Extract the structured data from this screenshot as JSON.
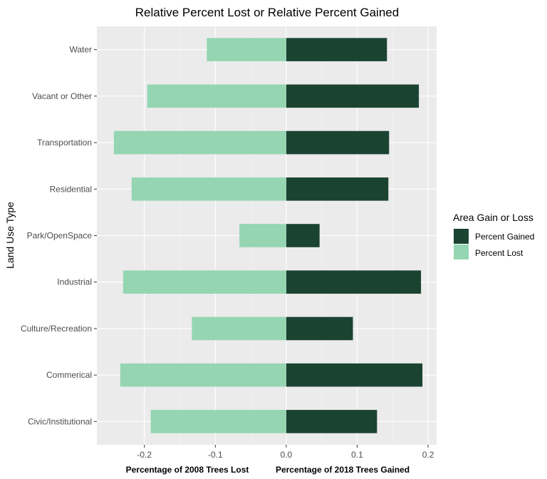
{
  "chart_data": {
    "type": "bar",
    "orientation": "horizontal",
    "title": "Relative Percent Lost or Relative Percent Gained",
    "ylabel": "Land Use Type",
    "bottom_labels": [
      "Percentage of 2008 Trees Lost",
      "Percentage of 2018 Trees Gained"
    ],
    "categories": [
      "Water",
      "Vacant or Other",
      "Transportation",
      "Residential",
      "Park/OpenSpace",
      "Industrial",
      "Culture/Recreation",
      "Commerical",
      "Civic/Institutional"
    ],
    "series": [
      {
        "name": "Percent Gained",
        "color": "#1b4332",
        "values": [
          0.142,
          0.187,
          0.145,
          0.144,
          0.047,
          0.19,
          0.094,
          0.192,
          0.128
        ]
      },
      {
        "name": "Percent Lost",
        "color": "#95d5b2",
        "values": [
          -0.112,
          -0.196,
          -0.243,
          -0.218,
          -0.066,
          -0.23,
          -0.133,
          -0.234,
          -0.191
        ]
      }
    ],
    "xlim": [
      -0.267,
      0.212
    ],
    "x_ticks": [
      -0.2,
      -0.1,
      0.0,
      0.1,
      0.2
    ],
    "x_tick_labels": [
      "-0.2",
      "-0.1",
      "0.0",
      "0.1",
      "0.2"
    ],
    "legend": {
      "title": "Area Gain or Loss",
      "position": "right",
      "entries": [
        "Percent Gained",
        "Percent Lost"
      ]
    },
    "grid": true,
    "panel_background": "#ebebeb"
  }
}
